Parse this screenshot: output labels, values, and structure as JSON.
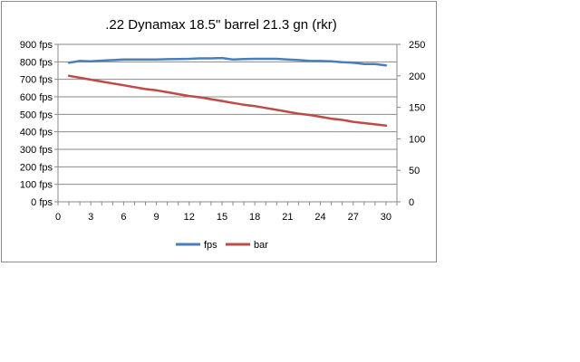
{
  "chart_data": {
    "type": "line",
    "title": ".22 Dynamax 18.5\" barrel 21.3 gn  (rkr)",
    "xlabel": "",
    "ylabel": "",
    "xlim": [
      0,
      31
    ],
    "x_ticks": [
      "0",
      "3",
      "6",
      "9",
      "12",
      "15",
      "18",
      "21",
      "24",
      "27",
      "30"
    ],
    "x_tick_values": [
      0,
      3,
      6,
      9,
      12,
      15,
      18,
      21,
      24,
      27,
      30
    ],
    "y_left": {
      "lim": [
        0,
        900
      ],
      "ticks": [
        "0 fps",
        "100 fps",
        "200 fps",
        "300 fps",
        "400 fps",
        "500 fps",
        "600 fps",
        "700 fps",
        "800 fps",
        "900 fps"
      ],
      "tick_values": [
        0,
        100,
        200,
        300,
        400,
        500,
        600,
        700,
        800,
        900
      ]
    },
    "y_right": {
      "lim": [
        0,
        250
      ],
      "ticks": [
        "0",
        "50",
        "100",
        "150",
        "200",
        "250"
      ],
      "tick_values": [
        0,
        50,
        100,
        150,
        200,
        250
      ]
    },
    "grid": "horizontal",
    "legend_position": "bottom",
    "x": [
      1,
      2,
      3,
      4,
      5,
      6,
      7,
      8,
      9,
      10,
      11,
      12,
      13,
      14,
      15,
      16,
      17,
      18,
      19,
      20,
      21,
      22,
      23,
      24,
      25,
      26,
      27,
      28,
      29,
      30
    ],
    "series": [
      {
        "name": "fps",
        "axis": "left",
        "color": "#4a7ebb",
        "values": [
          795,
          805,
          803,
          807,
          810,
          813,
          813,
          813,
          813,
          815,
          816,
          817,
          820,
          820,
          822,
          813,
          816,
          817,
          817,
          817,
          813,
          810,
          806,
          805,
          803,
          798,
          795,
          788,
          787,
          780
        ]
      },
      {
        "name": "bar",
        "axis": "right",
        "color": "#be4b48",
        "values": [
          200,
          197,
          194,
          191,
          188,
          185,
          182,
          179,
          177,
          174,
          171,
          168,
          166,
          163,
          160,
          157,
          154,
          152,
          149,
          146,
          143,
          140,
          138,
          135,
          132,
          130,
          127,
          125,
          123,
          121
        ]
      }
    ]
  }
}
